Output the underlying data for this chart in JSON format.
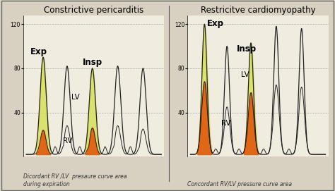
{
  "title_left": "Constrictive pericarditis",
  "title_right": "Restricitve cardiomyopathy",
  "left_yticks": [
    40,
    80,
    120
  ],
  "right_yticks": [
    40,
    80,
    120
  ],
  "ymin": 0,
  "ymax": 128,
  "caption_left": "Dicordant RV /LV  presaure curve area\nduring expiration",
  "caption_right": "Concordant RV/LV pressure curve area",
  "label_exp_left": "Exp",
  "label_insp_left": "Insp",
  "label_lv_left": "LV",
  "label_rv_left": "RV",
  "label_exp_right": "Exp",
  "label_insp_right": "Insp",
  "label_lv_right": "LV",
  "label_rv_right": "RV",
  "bg_color": "#d8d0c0",
  "panel_bg": "#f0ece0",
  "lv_color": "#d8e060",
  "rv_color": "#e06010",
  "curve_color": "#222222",
  "grid_color": "#999999",
  "sep_color": "#555555",
  "title_fontsize": 8.5,
  "label_fontsize": 7.5,
  "caption_fontsize": 5.5
}
